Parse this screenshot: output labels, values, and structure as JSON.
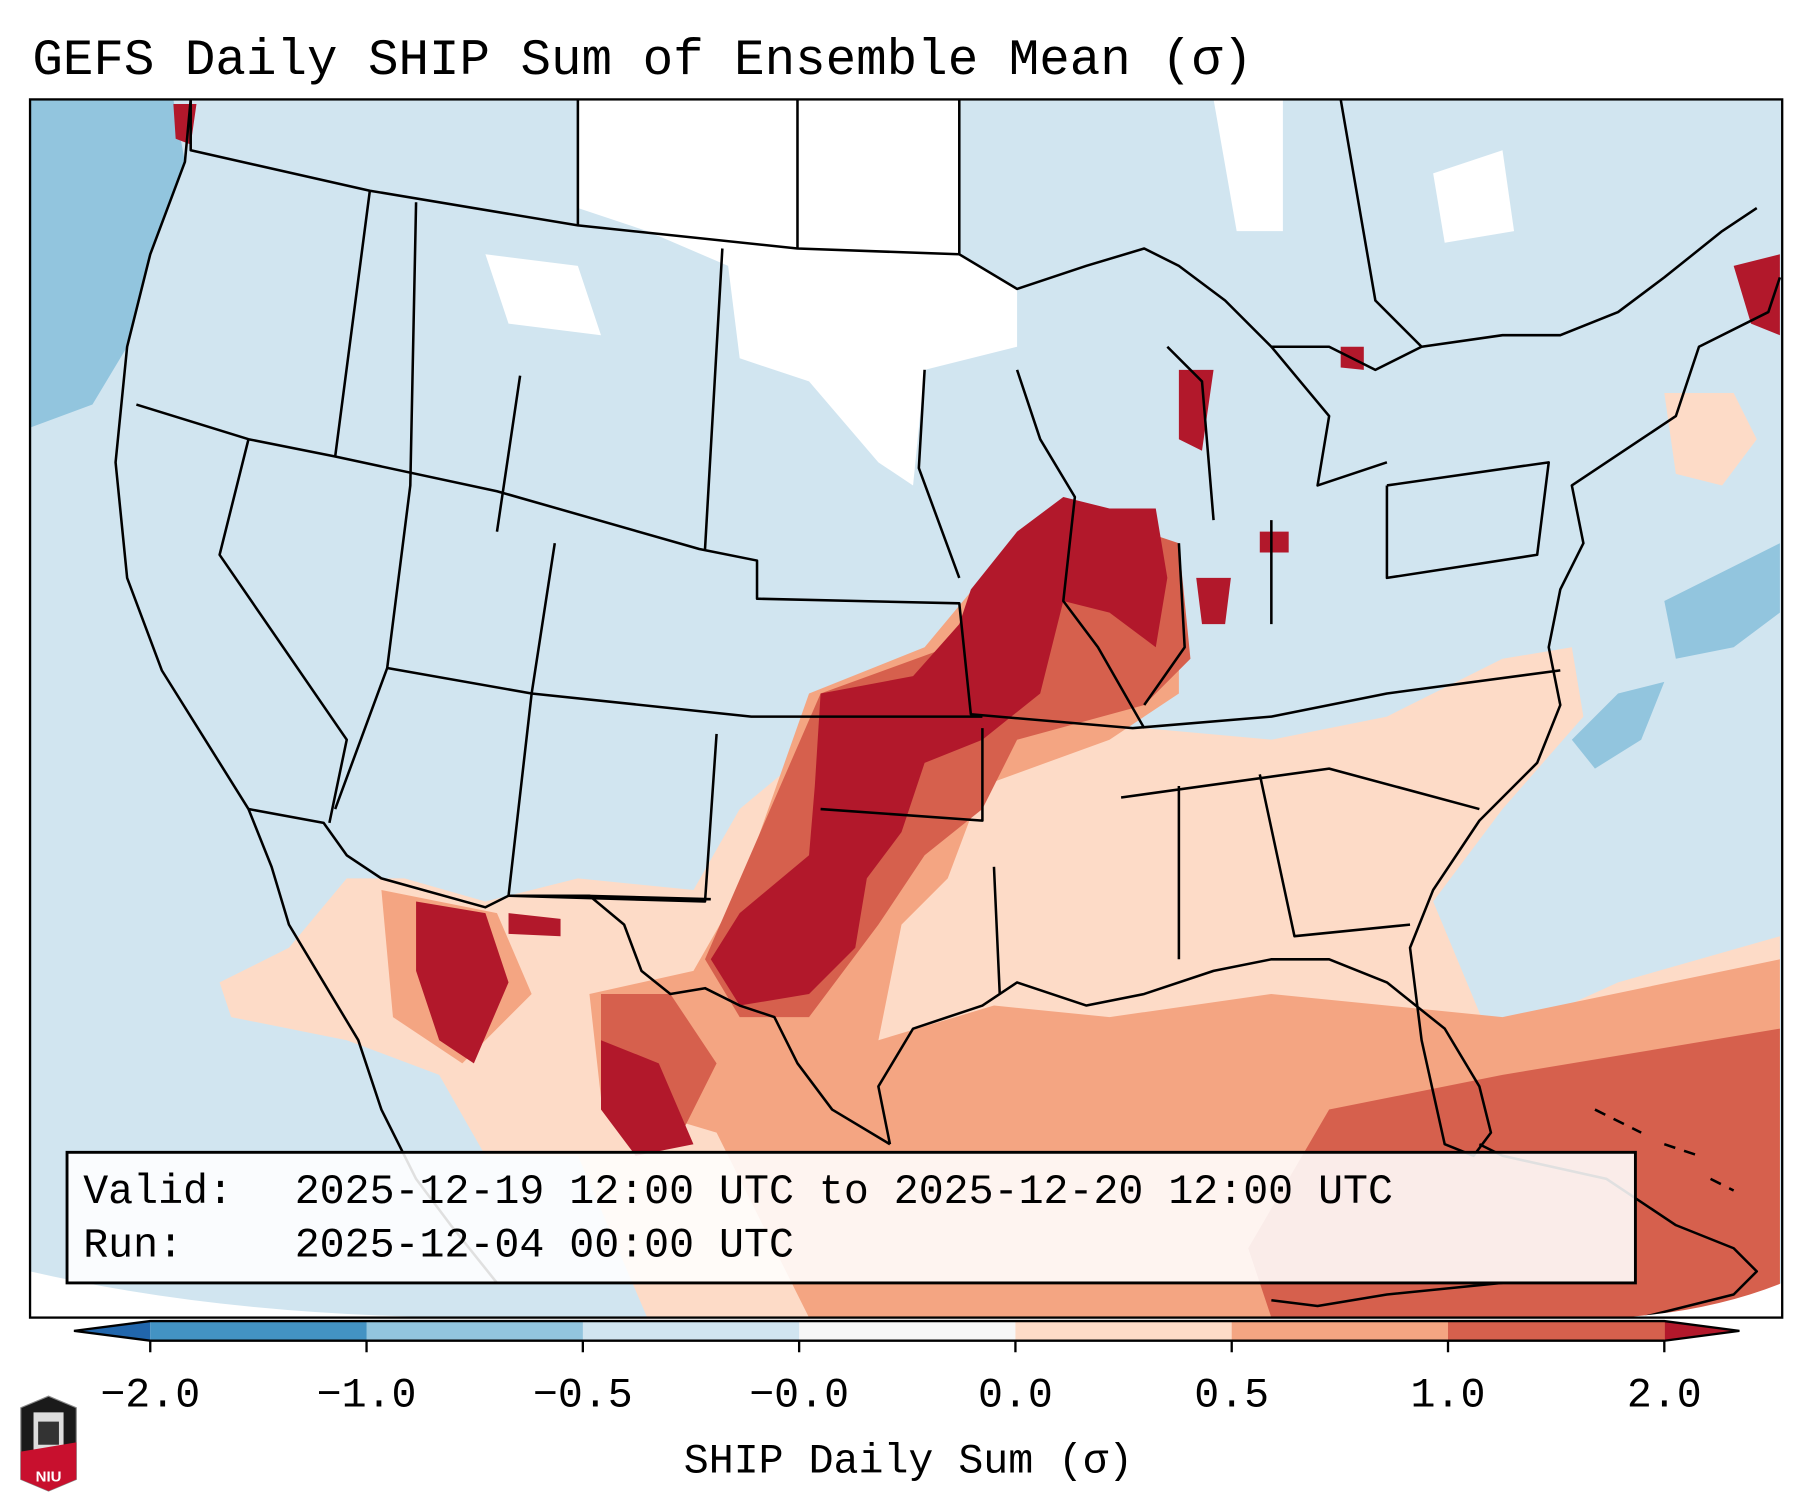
{
  "title": "GEFS Daily SHIP Sum of Ensemble Mean (σ)",
  "legend_box": {
    "valid_label": "Valid:",
    "valid_value": "2025-12-19 12:00 UTC to 2025-12-20 12:00 UTC",
    "run_label": "Run:",
    "run_value": "2025-12-04 00:00 UTC"
  },
  "colorbar": {
    "label": "SHIP Daily Sum (σ)",
    "ticks": [
      "−2.0",
      "−1.0",
      "−0.5",
      "−0.0",
      "0.0",
      "0.5",
      "1.0",
      "2.0"
    ],
    "colors": {
      "under": "#2166ac",
      "b1": "#4393c3",
      "b2": "#92c5de",
      "b3": "#d1e5f0",
      "b4": "#f7f7f7",
      "b5": "#fddbc7",
      "b6": "#f4a582",
      "b7": "#d6604d",
      "over": "#b2182b"
    }
  },
  "logo": {
    "text": "NIU"
  }
}
